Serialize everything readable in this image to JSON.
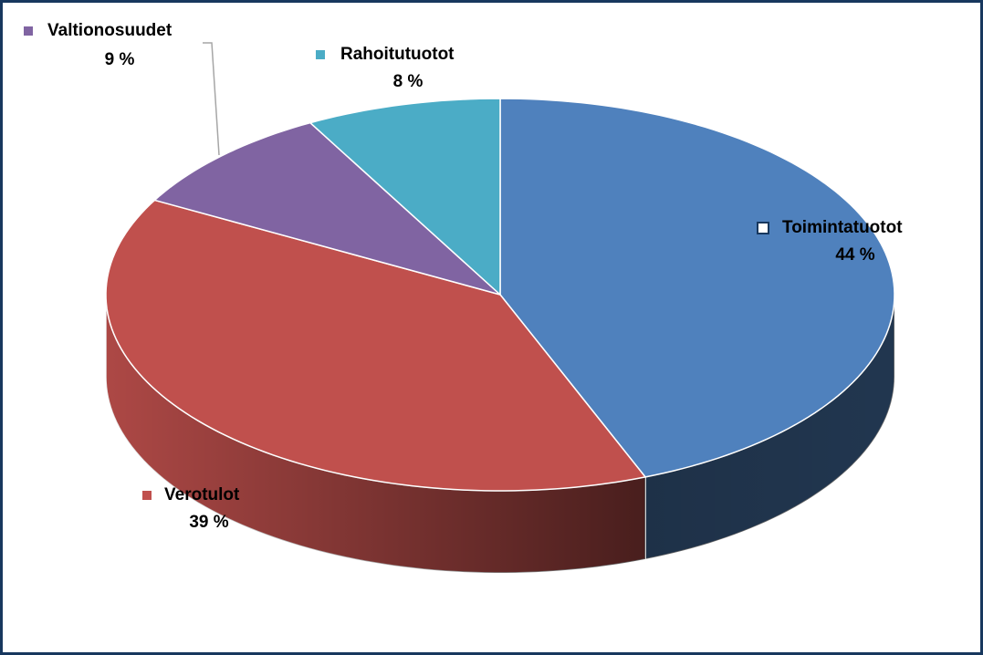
{
  "chart_data": {
    "type": "pie3d",
    "categories": [
      "Toimintatuotot",
      "Verotulot",
      "Valtionosuudet",
      "Rahoitutuotot"
    ],
    "values": [
      44,
      39,
      9,
      8
    ],
    "value_labels": [
      "44 %",
      "39 %",
      "9 %",
      "8 %"
    ],
    "colors": [
      "#4f81bd",
      "#c0504d",
      "#8064a2",
      "#4bacc6"
    ]
  }
}
